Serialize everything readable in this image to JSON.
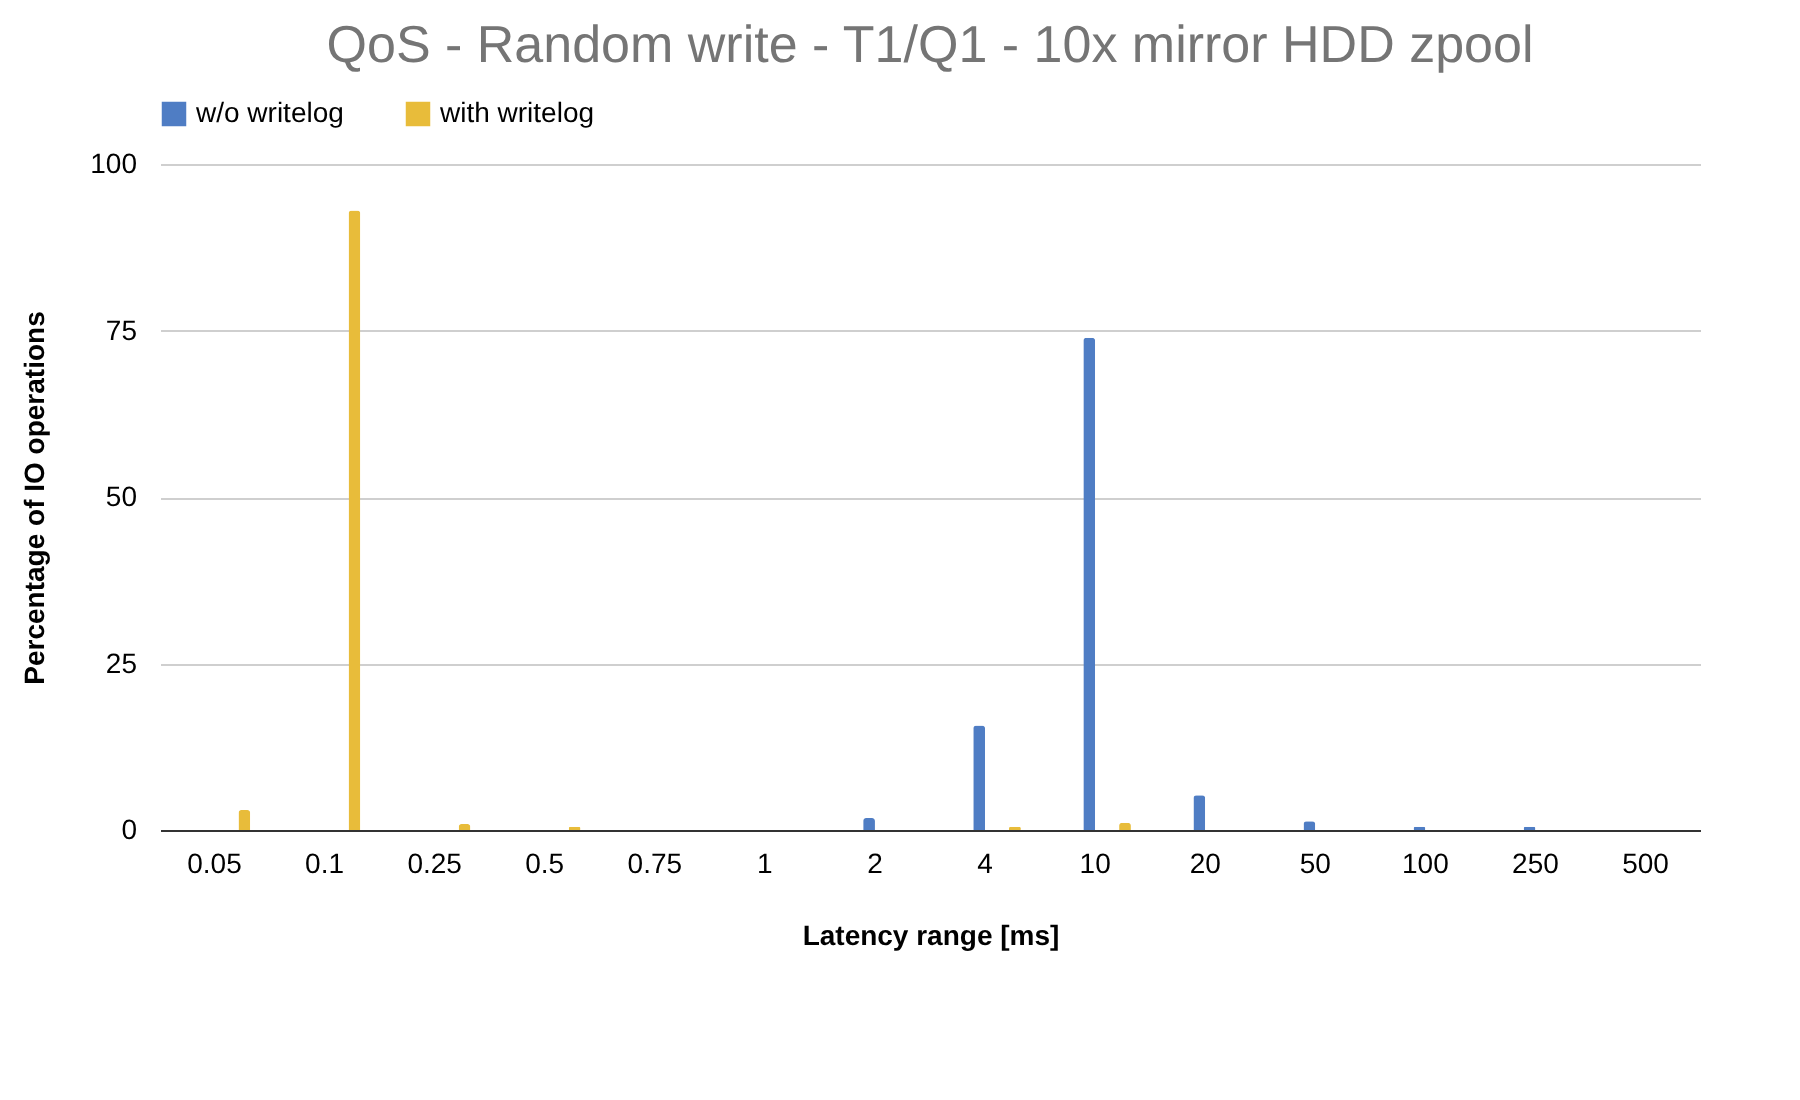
{
  "chart_data": {
    "type": "bar",
    "title": "QoS - Random write - T1/Q1 - 10x mirror HDD zpool",
    "xlabel": "Latency range [ms]",
    "ylabel": "Percentage of IO operations",
    "categories": [
      "0.05",
      "0.1",
      "0.25",
      "0.5",
      "0.75",
      "1",
      "2",
      "4",
      "10",
      "20",
      "50",
      "100",
      "250",
      "500"
    ],
    "series": [
      {
        "name": "w/o writelog",
        "color": "#4f7dc4",
        "values": [
          0,
          0,
          0,
          0,
          0,
          0,
          1.8,
          15.7,
          73.9,
          5.2,
          1.3,
          0.5,
          0.5,
          0
        ]
      },
      {
        "name": "with writelog",
        "color": "#e8bc3a",
        "values": [
          3,
          93,
          0.9,
          0.5,
          0,
          0,
          0,
          0.5,
          1.1,
          0,
          0,
          0,
          0,
          0
        ]
      }
    ],
    "ylim": [
      0,
      100
    ],
    "yticks": [
      0,
      25,
      50,
      75,
      100
    ],
    "grid": "y",
    "legend": "top"
  }
}
